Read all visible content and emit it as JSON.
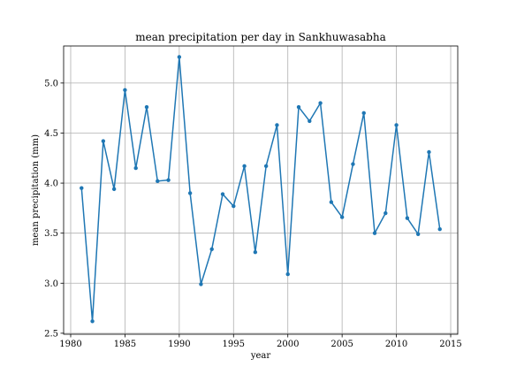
{
  "chart_data": {
    "type": "line",
    "title": "mean precipitation per day in Sankhuwasabha",
    "xlabel": "year",
    "ylabel": "mean precipitation (mm)",
    "xlim": [
      1979.35,
      2015.65
    ],
    "ylim": [
      2.49,
      5.37
    ],
    "xticks": [
      1980,
      1985,
      1990,
      1995,
      2000,
      2005,
      2010,
      2015
    ],
    "yticks": [
      2.5,
      3.0,
      3.5,
      4.0,
      4.5,
      5.0
    ],
    "grid": true,
    "colors": {
      "line": "#1f77b4",
      "grid": "#b0b0b0"
    },
    "x": [
      1981,
      1982,
      1983,
      1984,
      1985,
      1986,
      1987,
      1988,
      1989,
      1990,
      1991,
      1992,
      1993,
      1994,
      1995,
      1996,
      1997,
      1998,
      1999,
      2000,
      2001,
      2002,
      2003,
      2004,
      2005,
      2006,
      2007,
      2008,
      2009,
      2010,
      2011,
      2012,
      2013,
      2014
    ],
    "series": [
      {
        "values": [
          3.95,
          2.62,
          4.42,
          3.94,
          4.93,
          4.15,
          4.76,
          4.02,
          4.03,
          5.26,
          3.9,
          2.99,
          3.34,
          3.89,
          3.77,
          4.17,
          3.31,
          4.17,
          4.58,
          3.09,
          4.76,
          4.62,
          4.8,
          3.81,
          3.66,
          4.19,
          4.7,
          3.5,
          3.7,
          4.58,
          3.65,
          3.49,
          4.31,
          3.54
        ]
      }
    ]
  }
}
